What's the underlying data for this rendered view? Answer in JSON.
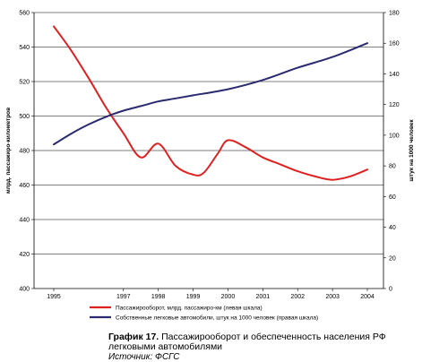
{
  "chart_data": {
    "type": "line",
    "ylabel_left": "млрд. пассажиро-километров",
    "ylabel_right": "штук на 1000 человек",
    "x": [
      1995,
      1996,
      1997,
      1998,
      1999,
      2000,
      2001,
      2002,
      2003,
      2004
    ],
    "x_tick_labels": [
      "1995",
      "1997",
      "1998",
      "1999",
      "2000",
      "2001",
      "2002",
      "2003",
      "2004"
    ],
    "x_tick_values": [
      1995,
      1997,
      1998,
      1999,
      2000,
      2001,
      2002,
      2003,
      2004
    ],
    "y_left": {
      "min": 400,
      "max": 560,
      "ticks": [
        "400",
        "420",
        "440",
        "460",
        "480",
        "500",
        "520",
        "540",
        "560"
      ]
    },
    "y_right": {
      "min": 0,
      "max": 180,
      "ticks": [
        "0",
        "20",
        "40",
        "60",
        "80",
        "100",
        "120",
        "140",
        "160",
        "180"
      ]
    },
    "grid": "horizontal",
    "legend_position": "bottom",
    "series": [
      {
        "name": "Пассажирооборот, млрд. пассажиро-км (левая шкала)",
        "axis": "left",
        "color": "#e02020",
        "x": [
          1995,
          1995.5,
          1996,
          1996.5,
          1997,
          1997.5,
          1998,
          1998.5,
          1999,
          1999.3,
          1999.7,
          2000,
          2000.5,
          2001,
          2001.5,
          2002,
          2002.5,
          2003,
          2003.5,
          2004
        ],
        "values": [
          552,
          538,
          522,
          505,
          490,
          476,
          484,
          471,
          466,
          467,
          478,
          486,
          482,
          476,
          472,
          468,
          465,
          463,
          465,
          469
        ]
      },
      {
        "name": "Собственные легковые автомобили, штук на 1000 человек (правая шкала)",
        "axis": "right",
        "color": "#2a2a70",
        "x": [
          1995,
          1995.5,
          1996,
          1996.5,
          1997,
          1997.5,
          1998,
          1998.5,
          1999,
          2000,
          2001,
          2002,
          2003,
          2004
        ],
        "values": [
          94,
          101,
          107,
          112,
          116,
          119,
          122,
          124,
          126,
          130,
          136,
          144,
          151,
          160
        ]
      }
    ]
  },
  "caption": {
    "title_bold": "График 17.",
    "title_rest": " Пассажирооборот и обеспеченность населения РФ",
    "title_line2": "легковыми автомобилями",
    "source": "Источник:  ФСГС"
  }
}
